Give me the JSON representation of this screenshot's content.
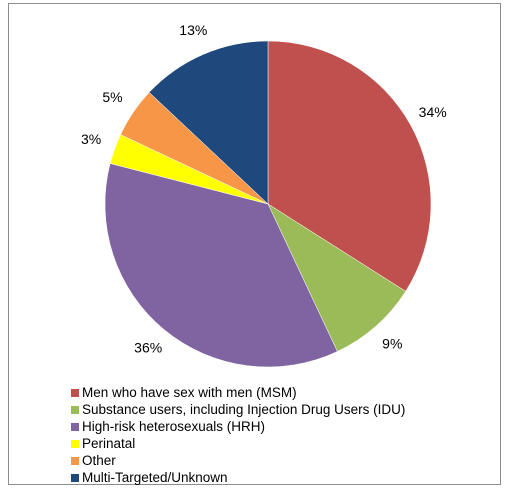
{
  "chart_data": {
    "type": "pie",
    "title": "",
    "start_angle_deg": 90,
    "direction": "clockwise",
    "slices": [
      {
        "label": "Men who have sex with men (MSM)",
        "value": 34,
        "value_label": "34%",
        "color": "#C0504D"
      },
      {
        "label": "Substance users, including Injection Drug Users (IDU)",
        "value": 9,
        "value_label": "9%",
        "color": "#9BBB59"
      },
      {
        "label": "High-risk heterosexuals (HRH)",
        "value": 36,
        "value_label": "36%",
        "color": "#8064A2"
      },
      {
        "label": "Perinatal",
        "value": 3,
        "value_label": "3%",
        "color": "#FFFF00"
      },
      {
        "label": "Other",
        "value": 5,
        "value_label": "5%",
        "color": "#F79646"
      },
      {
        "label": "Multi-Targeted/Unknown",
        "value": 13,
        "value_label": "13%",
        "color": "#1F497D"
      }
    ],
    "legend_position": "bottom-left"
  }
}
